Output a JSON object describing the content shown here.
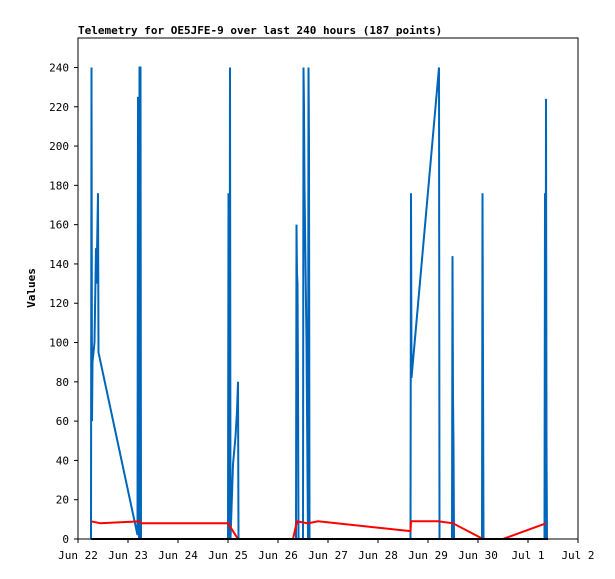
{
  "chart_data": {
    "type": "line",
    "title": "Telemetry for OE5JFE-9 over last 240 hours (187 points)",
    "xlabel": "",
    "ylabel": "Values",
    "x_unit": "days from Jun 22 00:00",
    "xlim": [
      0,
      10
    ],
    "ylim": [
      0,
      255
    ],
    "x_ticks": [
      {
        "x": 0,
        "label": "Jun 22"
      },
      {
        "x": 1,
        "label": "Jun 23"
      },
      {
        "x": 2,
        "label": "Jun 24"
      },
      {
        "x": 3,
        "label": "Jun 25"
      },
      {
        "x": 4,
        "label": "Jun 26"
      },
      {
        "x": 5,
        "label": "Jun 27"
      },
      {
        "x": 6,
        "label": "Jun 28"
      },
      {
        "x": 7,
        "label": "Jun 29"
      },
      {
        "x": 8,
        "label": "Jun 30"
      },
      {
        "x": 9,
        "label": "Jul 1"
      },
      {
        "x": 10,
        "label": "Jul 2"
      }
    ],
    "y_ticks": [
      0,
      20,
      40,
      60,
      80,
      100,
      120,
      140,
      160,
      180,
      200,
      220,
      240
    ],
    "grid": false,
    "legend": "none",
    "series": [
      {
        "color": "#0066bb",
        "points": [
          [
            0.26,
            0
          ],
          [
            0.27,
            240
          ],
          [
            0.28,
            60
          ],
          [
            0.29,
            90
          ],
          [
            0.33,
            100
          ],
          [
            0.36,
            148
          ],
          [
            0.37,
            130
          ],
          [
            0.4,
            176
          ],
          [
            0.41,
            95
          ],
          [
            1.19,
            2
          ],
          [
            1.2,
            225
          ],
          [
            1.22,
            0
          ],
          [
            1.23,
            240
          ],
          [
            1.25,
            240
          ],
          [
            1.26,
            0
          ],
          [
            1.27,
            0
          ],
          [
            3.0,
            0
          ],
          [
            3.01,
            176
          ],
          [
            3.03,
            0
          ],
          [
            3.04,
            240
          ],
          [
            3.05,
            0
          ],
          [
            3.1,
            38
          ],
          [
            3.15,
            52
          ],
          [
            3.18,
            65
          ],
          [
            3.2,
            80
          ],
          [
            3.21,
            0
          ],
          [
            4.36,
            0
          ],
          [
            4.37,
            160
          ],
          [
            4.38,
            135
          ],
          [
            4.39,
            130
          ],
          [
            4.4,
            80
          ],
          [
            4.41,
            0
          ],
          [
            4.5,
            0
          ],
          [
            4.51,
            240
          ],
          [
            4.52,
            220
          ],
          [
            4.53,
            180
          ],
          [
            4.55,
            140
          ],
          [
            4.57,
            100
          ],
          [
            4.6,
            0
          ],
          [
            4.61,
            240
          ],
          [
            4.62,
            200
          ],
          [
            4.63,
            0
          ],
          [
            6.65,
            0
          ],
          [
            6.66,
            176
          ],
          [
            6.67,
            82
          ],
          [
            7.22,
            240
          ],
          [
            7.23,
            0
          ],
          [
            7.48,
            0
          ],
          [
            7.49,
            144
          ],
          [
            7.5,
            72
          ],
          [
            7.51,
            48
          ],
          [
            7.52,
            0
          ],
          [
            8.08,
            0
          ],
          [
            8.09,
            176
          ],
          [
            8.1,
            88
          ],
          [
            8.11,
            0
          ],
          [
            9.33,
            0
          ],
          [
            9.34,
            176
          ],
          [
            9.35,
            0
          ],
          [
            9.36,
            224
          ],
          [
            9.37,
            48
          ],
          [
            9.38,
            0
          ]
        ]
      },
      {
        "color": "#ff0000",
        "points": [
          [
            0.26,
            9
          ],
          [
            0.45,
            8
          ],
          [
            1.23,
            9
          ],
          [
            1.27,
            8
          ],
          [
            3.0,
            8
          ],
          [
            3.2,
            0
          ],
          [
            4.3,
            0
          ],
          [
            4.38,
            9
          ],
          [
            4.6,
            8
          ],
          [
            4.8,
            9
          ],
          [
            6.65,
            4
          ],
          [
            6.66,
            9
          ],
          [
            7.2,
            9
          ],
          [
            7.5,
            8
          ],
          [
            8.1,
            0
          ],
          [
            8.5,
            0
          ],
          [
            9.36,
            8
          ]
        ]
      },
      {
        "color": "#000000",
        "points": [
          [
            0.26,
            0
          ],
          [
            9.4,
            0
          ]
        ]
      }
    ]
  }
}
